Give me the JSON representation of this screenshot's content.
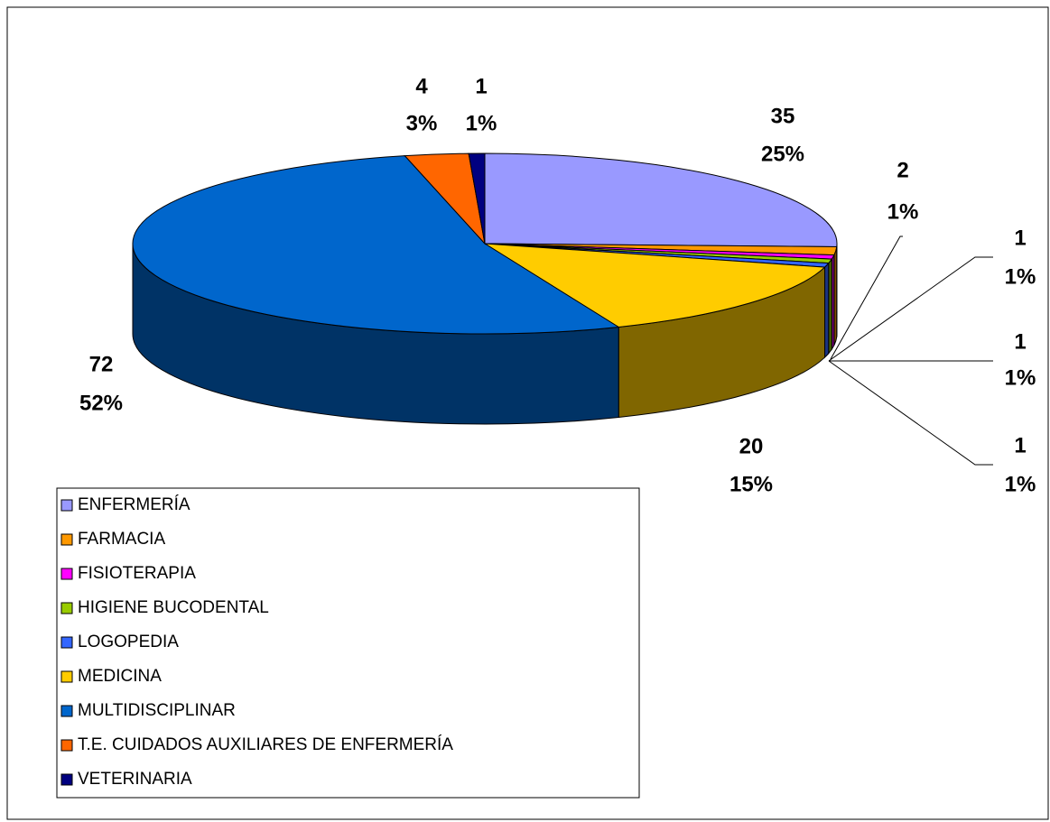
{
  "chart_data": {
    "type": "pie3d",
    "categories": [
      "ENFERMERÍA",
      "FARMACIA",
      "FISIOTERAPIA",
      "HIGIENE BUCODENTAL",
      "LOGOPEDIA",
      "MEDICINA",
      "MULTIDISCIPLINAR",
      "T.E. CUIDADOS AUXILIARES DE ENFERMERÍA",
      "VETERINARIA"
    ],
    "values": [
      35,
      2,
      1,
      1,
      1,
      20,
      72,
      4,
      1
    ],
    "percent_labels": [
      "25%",
      "1%",
      "1%",
      "1%",
      "1%",
      "15%",
      "52%",
      "3%",
      "1%"
    ],
    "colors": [
      "#9999ff",
      "#ff9900",
      "#ff00ff",
      "#99cc00",
      "#3366ff",
      "#ffcc00",
      "#0066cc",
      "#ff6600",
      "#000080"
    ],
    "legend": "bottom-left"
  }
}
